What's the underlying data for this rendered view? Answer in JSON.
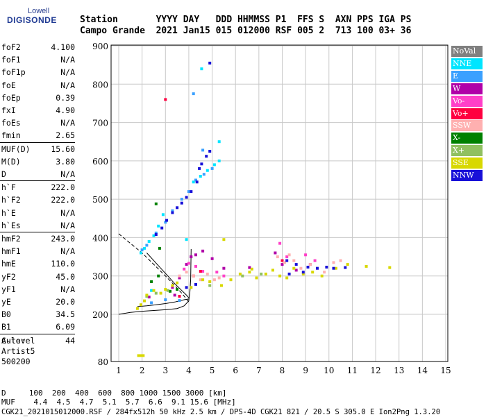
{
  "logo": {
    "top": "Lowell",
    "main": "DIGISONDE"
  },
  "header": {
    "line1": "Station       YYYY DAY   DDD HHMMSS P1  FFS S  AXN PPS IGA PS",
    "line2": "Campo Grande  2021 Jan15 015 012000 RSF 005 2  713 100 03+ 36"
  },
  "params": [
    {
      "name": "foF2",
      "value": "4.100"
    },
    {
      "name": "foF1",
      "value": "N/A"
    },
    {
      "name": "foF1p",
      "value": "N/A"
    },
    {
      "name": "foE",
      "value": "N/A"
    },
    {
      "name": "foEp",
      "value": "0.39"
    },
    {
      "name": "fxI",
      "value": "4.90"
    },
    {
      "name": "foEs",
      "value": "N/A"
    },
    {
      "name": "fmin",
      "value": "2.65"
    },
    {
      "name": "MUF(D)",
      "value": "15.60"
    },
    {
      "name": "M(D)",
      "value": "3.80"
    },
    {
      "name": "D",
      "value": "N/A"
    },
    {
      "name": "h`F",
      "value": "222.0"
    },
    {
      "name": "h`F2",
      "value": "222.0"
    },
    {
      "name": "h`E",
      "value": "N/A"
    },
    {
      "name": "h`Es",
      "value": "N/A"
    },
    {
      "name": "hmF2",
      "value": "243.0"
    },
    {
      "name": "hmF1",
      "value": "N/A"
    },
    {
      "name": "hmE",
      "value": "110.0"
    },
    {
      "name": "yF2",
      "value": "45.0"
    },
    {
      "name": "yF1",
      "value": "N/A"
    },
    {
      "name": "yE",
      "value": "20.0"
    },
    {
      "name": "B0",
      "value": "34.5"
    },
    {
      "name": "B1",
      "value": "6.09"
    },
    {
      "name": "C-level",
      "value": "44"
    }
  ],
  "auto": {
    "line1": "Auto:",
    "line2": "Artist5",
    "line3": "500200"
  },
  "legend": [
    {
      "label": "NoVal",
      "color": "#808080"
    },
    {
      "label": "NNE",
      "color": "#00e5ff"
    },
    {
      "label": "E",
      "color": "#3aa0ff"
    },
    {
      "label": "W",
      "color": "#b000a8"
    },
    {
      "label": "Vo-",
      "color": "#ff40c8"
    },
    {
      "label": "Vo+",
      "color": "#ff0040"
    },
    {
      "label": "SSW",
      "color": "#ffb0b0"
    },
    {
      "label": "X-",
      "color": "#008000"
    },
    {
      "label": "X+",
      "color": "#90c060"
    },
    {
      "label": "SSE",
      "color": "#d8d800"
    },
    {
      "label": "NNW",
      "color": "#1810d8"
    }
  ],
  "footer": {
    "d_line": "D     100  200  400  600  800 1000 1500 3000 [km]",
    "muf_line": "MUF    4.4  4.5  4.7  5.1  5.7  6.6  9.1 15.6 [MHz]",
    "file_line": "CGK21_2021015012000.RSF / 284fx512h 50 kHz 2.5 km / DPS-4D CGK21 821 / 20.5 S 305.0 E Ion2Png 1.3.20"
  },
  "chart_data": {
    "type": "scatter",
    "title": "",
    "xlabel": "",
    "ylabel": "",
    "xlim": [
      0.8,
      15
    ],
    "ylim": [
      80,
      900
    ],
    "xticks": [
      1,
      2,
      3,
      4,
      5,
      6,
      7,
      8,
      9,
      10,
      11,
      12,
      13,
      14,
      15
    ],
    "yticks": [
      80,
      200,
      300,
      400,
      500,
      600,
      700,
      800,
      900
    ],
    "grid": true,
    "series": [
      {
        "name": "NNE",
        "color": "#00e5ff",
        "points": [
          [
            1.95,
            360
          ],
          [
            2.1,
            372
          ],
          [
            2.3,
            390
          ],
          [
            2.5,
            405
          ],
          [
            2.7,
            430
          ],
          [
            2.9,
            460
          ],
          [
            4.2,
            545
          ],
          [
            4.5,
            560
          ],
          [
            4.8,
            575
          ],
          [
            5.1,
            590
          ],
          [
            5.3,
            600
          ],
          [
            5.3,
            650
          ],
          [
            4.55,
            840
          ],
          [
            3.9,
            395
          ],
          [
            2.4,
            262
          ]
        ]
      },
      {
        "name": "E",
        "color": "#3aa0ff",
        "points": [
          [
            2.0,
            368
          ],
          [
            2.2,
            380
          ],
          [
            2.6,
            412
          ],
          [
            3.0,
            440
          ],
          [
            3.3,
            470
          ],
          [
            3.7,
            500
          ],
          [
            4.0,
            520
          ],
          [
            4.3,
            550
          ],
          [
            4.65,
            565
          ],
          [
            5.0,
            580
          ],
          [
            2.4,
            230
          ],
          [
            3.0,
            238
          ],
          [
            3.6,
            236
          ],
          [
            4.2,
            775
          ],
          [
            4.6,
            628
          ]
        ]
      },
      {
        "name": "W",
        "color": "#b000a8",
        "points": [
          [
            3.3,
            270
          ],
          [
            3.6,
            295
          ],
          [
            3.9,
            330
          ],
          [
            4.1,
            350
          ],
          [
            4.3,
            355
          ],
          [
            4.6,
            365
          ],
          [
            5.0,
            345
          ],
          [
            5.5,
            320
          ],
          [
            6.6,
            322
          ],
          [
            7.7,
            360
          ],
          [
            8.0,
            330
          ],
          [
            8.6,
            315
          ],
          [
            9.2,
            330
          ],
          [
            3.4,
            250
          ],
          [
            2.3,
            245
          ]
        ]
      },
      {
        "name": "Vo-",
        "color": "#ff40c8",
        "points": [
          [
            3.8,
            318
          ],
          [
            4.0,
            333
          ],
          [
            4.3,
            325
          ],
          [
            4.6,
            312
          ],
          [
            5.2,
            310
          ],
          [
            5.5,
            300
          ],
          [
            7.9,
            385
          ],
          [
            8.2,
            350
          ],
          [
            9.0,
            355
          ],
          [
            9.4,
            340
          ]
        ]
      },
      {
        "name": "Vo+",
        "color": "#ff0040",
        "points": [
          [
            3.0,
            760
          ],
          [
            4.2,
            300
          ],
          [
            4.5,
            312
          ],
          [
            8.0,
            340
          ],
          [
            3.6,
            247
          ]
        ]
      },
      {
        "name": "SSW",
        "color": "#ffb0b0",
        "points": [
          [
            3.6,
            300
          ],
          [
            3.9,
            310
          ],
          [
            4.2,
            300
          ],
          [
            4.5,
            290
          ],
          [
            4.8,
            305
          ],
          [
            5.1,
            290
          ],
          [
            5.3,
            295
          ],
          [
            7.8,
            350
          ],
          [
            8.1,
            335
          ],
          [
            8.3,
            355
          ],
          [
            8.5,
            340
          ],
          [
            8.8,
            320
          ],
          [
            9.2,
            330
          ],
          [
            9.5,
            320
          ],
          [
            9.8,
            310
          ],
          [
            10.2,
            335
          ],
          [
            10.5,
            340
          ]
        ]
      },
      {
        "name": "X-",
        "color": "#008000",
        "points": [
          [
            2.4,
            285
          ],
          [
            2.7,
            300
          ],
          [
            2.6,
            488
          ],
          [
            2.75,
            372
          ],
          [
            3.2,
            260
          ],
          [
            3.5,
            265
          ]
        ]
      },
      {
        "name": "X+",
        "color": "#90c060",
        "points": [
          [
            2.2,
            247
          ],
          [
            2.6,
            255
          ],
          [
            3.1,
            262
          ],
          [
            4.9,
            275
          ],
          [
            6.3,
            300
          ],
          [
            7.1,
            305
          ]
        ]
      },
      {
        "name": "SSE",
        "color": "#d8d800",
        "points": [
          [
            1.8,
            215
          ],
          [
            1.95,
            225
          ],
          [
            2.1,
            235
          ],
          [
            2.2,
            250
          ],
          [
            2.5,
            262
          ],
          [
            2.8,
            255
          ],
          [
            3.0,
            265
          ],
          [
            3.3,
            275
          ],
          [
            3.5,
            282
          ],
          [
            4.6,
            290
          ],
          [
            4.9,
            285
          ],
          [
            5.4,
            275
          ],
          [
            5.8,
            290
          ],
          [
            6.2,
            305
          ],
          [
            6.6,
            310
          ],
          [
            6.9,
            295
          ],
          [
            7.3,
            305
          ],
          [
            7.6,
            315
          ],
          [
            7.9,
            300
          ],
          [
            8.2,
            295
          ],
          [
            8.5,
            320
          ],
          [
            8.9,
            305
          ],
          [
            9.3,
            310
          ],
          [
            9.7,
            300
          ],
          [
            10.3,
            320
          ],
          [
            10.8,
            330
          ],
          [
            11.6,
            325
          ],
          [
            12.6,
            322
          ],
          [
            1.85,
            95
          ],
          [
            1.95,
            95
          ],
          [
            2.05,
            95
          ],
          [
            5.5,
            395
          ],
          [
            4.1,
            270
          ],
          [
            6.7,
            318
          ]
        ]
      },
      {
        "name": "NNW",
        "color": "#1810d8",
        "points": [
          [
            2.6,
            408
          ],
          [
            2.85,
            425
          ],
          [
            3.05,
            445
          ],
          [
            3.3,
            465
          ],
          [
            3.5,
            478
          ],
          [
            3.7,
            490
          ],
          [
            3.9,
            505
          ],
          [
            4.1,
            520
          ],
          [
            4.35,
            545
          ],
          [
            4.55,
            592
          ],
          [
            4.75,
            612
          ],
          [
            4.9,
            625
          ],
          [
            4.9,
            855
          ],
          [
            4.45,
            580
          ],
          [
            8.2,
            340
          ],
          [
            8.6,
            330
          ],
          [
            9.1,
            323
          ],
          [
            9.5,
            320
          ],
          [
            9.9,
            323
          ],
          [
            10.2,
            320
          ],
          [
            10.7,
            322
          ],
          [
            8.3,
            305
          ],
          [
            8.9,
            310
          ],
          [
            3.9,
            270
          ],
          [
            4.3,
            278
          ]
        ]
      }
    ],
    "traces": [
      {
        "name": "profile-lower",
        "style": "solid",
        "color": "#000000",
        "points": [
          [
            1.0,
            200
          ],
          [
            1.5,
            205
          ],
          [
            2.0,
            208
          ],
          [
            2.5,
            210
          ],
          [
            3.0,
            212
          ],
          [
            3.5,
            215
          ],
          [
            3.8,
            222
          ],
          [
            4.0,
            235
          ],
          [
            4.05,
            260
          ],
          [
            4.08,
            290
          ],
          [
            4.1,
            370
          ]
        ]
      },
      {
        "name": "profile-upper",
        "style": "dashed",
        "color": "#000000",
        "points": [
          [
            1.0,
            410
          ],
          [
            1.5,
            385
          ],
          [
            2.0,
            360
          ],
          [
            2.5,
            330
          ],
          [
            3.0,
            300
          ],
          [
            3.4,
            275
          ],
          [
            3.7,
            255
          ],
          [
            3.9,
            240
          ],
          [
            4.0,
            232
          ]
        ]
      },
      {
        "name": "trace-left",
        "style": "solid",
        "color": "#000000",
        "points": [
          [
            2.2,
            360
          ],
          [
            2.5,
            340
          ],
          [
            2.8,
            320
          ],
          [
            3.1,
            300
          ],
          [
            3.4,
            280
          ],
          [
            3.7,
            262
          ],
          [
            3.9,
            250
          ],
          [
            4.0,
            243
          ]
        ]
      },
      {
        "name": "trace-bottom",
        "style": "solid",
        "color": "#000000",
        "points": [
          [
            1.8,
            220
          ],
          [
            2.2,
            222
          ],
          [
            2.6,
            225
          ],
          [
            3.0,
            228
          ],
          [
            3.4,
            232
          ],
          [
            3.8,
            238
          ],
          [
            4.0,
            240
          ]
        ]
      }
    ]
  }
}
